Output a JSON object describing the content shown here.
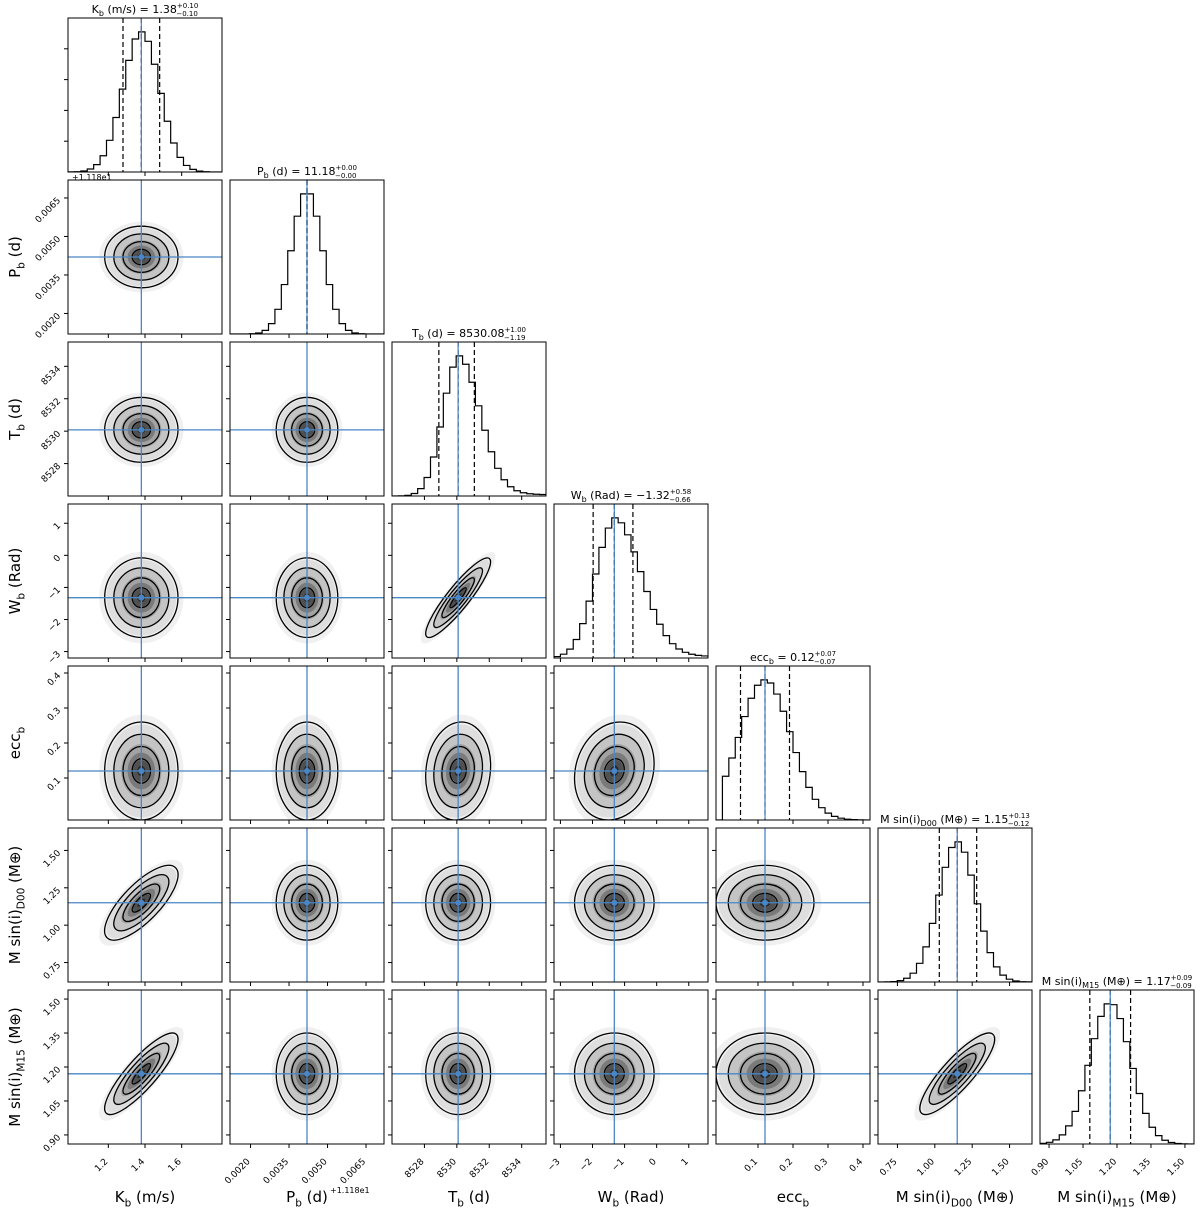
{
  "chart_data": {
    "type": "corner",
    "parameters": [
      {
        "key": "K",
        "label": "K_b (m/s)",
        "range": [
          0.98,
          1.82
        ],
        "median": 1.38,
        "plus": 0.1,
        "minus": 0.1,
        "sigma": 0.1,
        "ticks": [
          1.2,
          1.4,
          1.6
        ],
        "tick_labels": [
          "1.2",
          "1.4",
          "1.6"
        ],
        "title_prefix": "K",
        "title_sub": "b",
        "title_suffix": " (m/s) = 1.38",
        "title_sup": "+0.10",
        "title_inf": "−0.10",
        "axis_main": "K",
        "axis_sub": "b",
        "axis_rest": " (m/s)"
      },
      {
        "key": "P",
        "label": "P_b (d)",
        "range": [
          0.0012,
          0.0072
        ],
        "median": 0.0042,
        "plus": 0.0,
        "minus": 0.0,
        "sigma": 0.0006,
        "ticks": [
          0.002,
          0.0035,
          0.005,
          0.0065
        ],
        "tick_labels": [
          "0.0020",
          "0.0035",
          "0.0050",
          "0.0065"
        ],
        "title_prefix": "P",
        "title_sub": "b",
        "title_suffix": " (d) = 11.18",
        "title_sup": "+0.00",
        "title_inf": "−0.00",
        "axis_main": "P",
        "axis_sub": "b",
        "axis_rest": " (d)",
        "offset_label": "+1.118e1"
      },
      {
        "key": "T",
        "label": "T_b (d)",
        "range": [
          8526.0,
          8535.5
        ],
        "median": 8530.08,
        "plus": 1.0,
        "minus": 1.19,
        "sigma": 1.0,
        "ticks": [
          8528,
          8530,
          8532,
          8534
        ],
        "tick_labels": [
          "8528",
          "8530",
          "8532",
          "8534"
        ],
        "title_prefix": "T",
        "title_sub": "b",
        "title_suffix": " (d) = 8530.08",
        "title_sup": "+1.00",
        "title_inf": "−1.19",
        "axis_main": "T",
        "axis_sub": "b",
        "axis_rest": " (d)"
      },
      {
        "key": "W",
        "label": "W_b (Rad)",
        "range": [
          -3.2,
          1.6
        ],
        "median": -1.32,
        "plus": 0.58,
        "minus": 0.66,
        "sigma": 0.62,
        "ticks": [
          -3,
          -2,
          -1,
          0,
          1
        ],
        "tick_labels": [
          "−3",
          "−2",
          "−1",
          "0",
          "1"
        ],
        "title_prefix": "W",
        "title_sub": "b",
        "title_suffix": " (Rad) = −1.32",
        "title_sup": "+0.58",
        "title_inf": "−0.66",
        "axis_main": "W",
        "axis_sub": "b",
        "axis_rest": " (Rad)"
      },
      {
        "key": "ecc",
        "label": "ecc_b",
        "range": [
          -0.02,
          0.42
        ],
        "median": 0.12,
        "plus": 0.07,
        "minus": 0.07,
        "sigma": 0.07,
        "ticks": [
          0.1,
          0.2,
          0.3,
          0.4
        ],
        "tick_labels": [
          "0.1",
          "0.2",
          "0.3",
          "0.4"
        ],
        "title_prefix": "ecc",
        "title_sub": "b",
        "title_suffix": " = 0.12",
        "title_sup": "+0.07",
        "title_inf": "−0.07",
        "axis_main": "ecc",
        "axis_sub": "b",
        "axis_rest": ""
      },
      {
        "key": "MD00",
        "label": "M sin(i)_D00 (M⊕)",
        "range": [
          0.62,
          1.65
        ],
        "median": 1.15,
        "plus": 0.13,
        "minus": 0.12,
        "sigma": 0.125,
        "ticks": [
          0.75,
          1.0,
          1.25,
          1.5
        ],
        "tick_labels": [
          "0.75",
          "1.00",
          "1.25",
          "1.50"
        ],
        "title_prefix": "M sin(i)",
        "title_sub": "D00",
        "title_suffix": " (M⊕) = 1.15",
        "title_sup": "+0.13",
        "title_inf": "−0.12",
        "axis_main": "M sin(i)",
        "axis_sub": "D00",
        "axis_rest": " (M⊕)"
      },
      {
        "key": "MM15",
        "label": "M sin(i)_M15 (M⊕)",
        "range": [
          0.86,
          1.54
        ],
        "median": 1.17,
        "plus": 0.09,
        "minus": 0.09,
        "sigma": 0.09,
        "ticks": [
          0.9,
          1.05,
          1.2,
          1.35,
          1.5
        ],
        "tick_labels": [
          "0.90",
          "1.05",
          "1.20",
          "1.35",
          "1.50"
        ],
        "title_prefix": "M sin(i)",
        "title_sub": "M15",
        "title_suffix": " (M⊕) = 1.17",
        "title_sup": "+0.09",
        "title_inf": "−0.09",
        "axis_main": "M sin(i)",
        "axis_sub": "M15",
        "axis_rest": " (M⊕)"
      }
    ],
    "correlations": [
      {
        "pair": [
          "W",
          "T"
        ],
        "rho": 0.9
      },
      {
        "pair": [
          "MD00",
          "K"
        ],
        "rho": 0.75
      },
      {
        "pair": [
          "MM15",
          "K"
        ],
        "rho": 0.85
      },
      {
        "pair": [
          "MM15",
          "MD00"
        ],
        "rho": 0.85
      },
      {
        "pair": [
          "ecc",
          "W"
        ],
        "rho": 0.15
      },
      {
        "pair": [
          "ecc",
          "T"
        ],
        "rho": 0.1
      }
    ],
    "contour_levels": [
      "0.5σ",
      "1σ",
      "1.5σ",
      "2σ"
    ],
    "truth_line_color": "#4a86c5",
    "contour_color": "#000000",
    "histogram_style": "step"
  }
}
